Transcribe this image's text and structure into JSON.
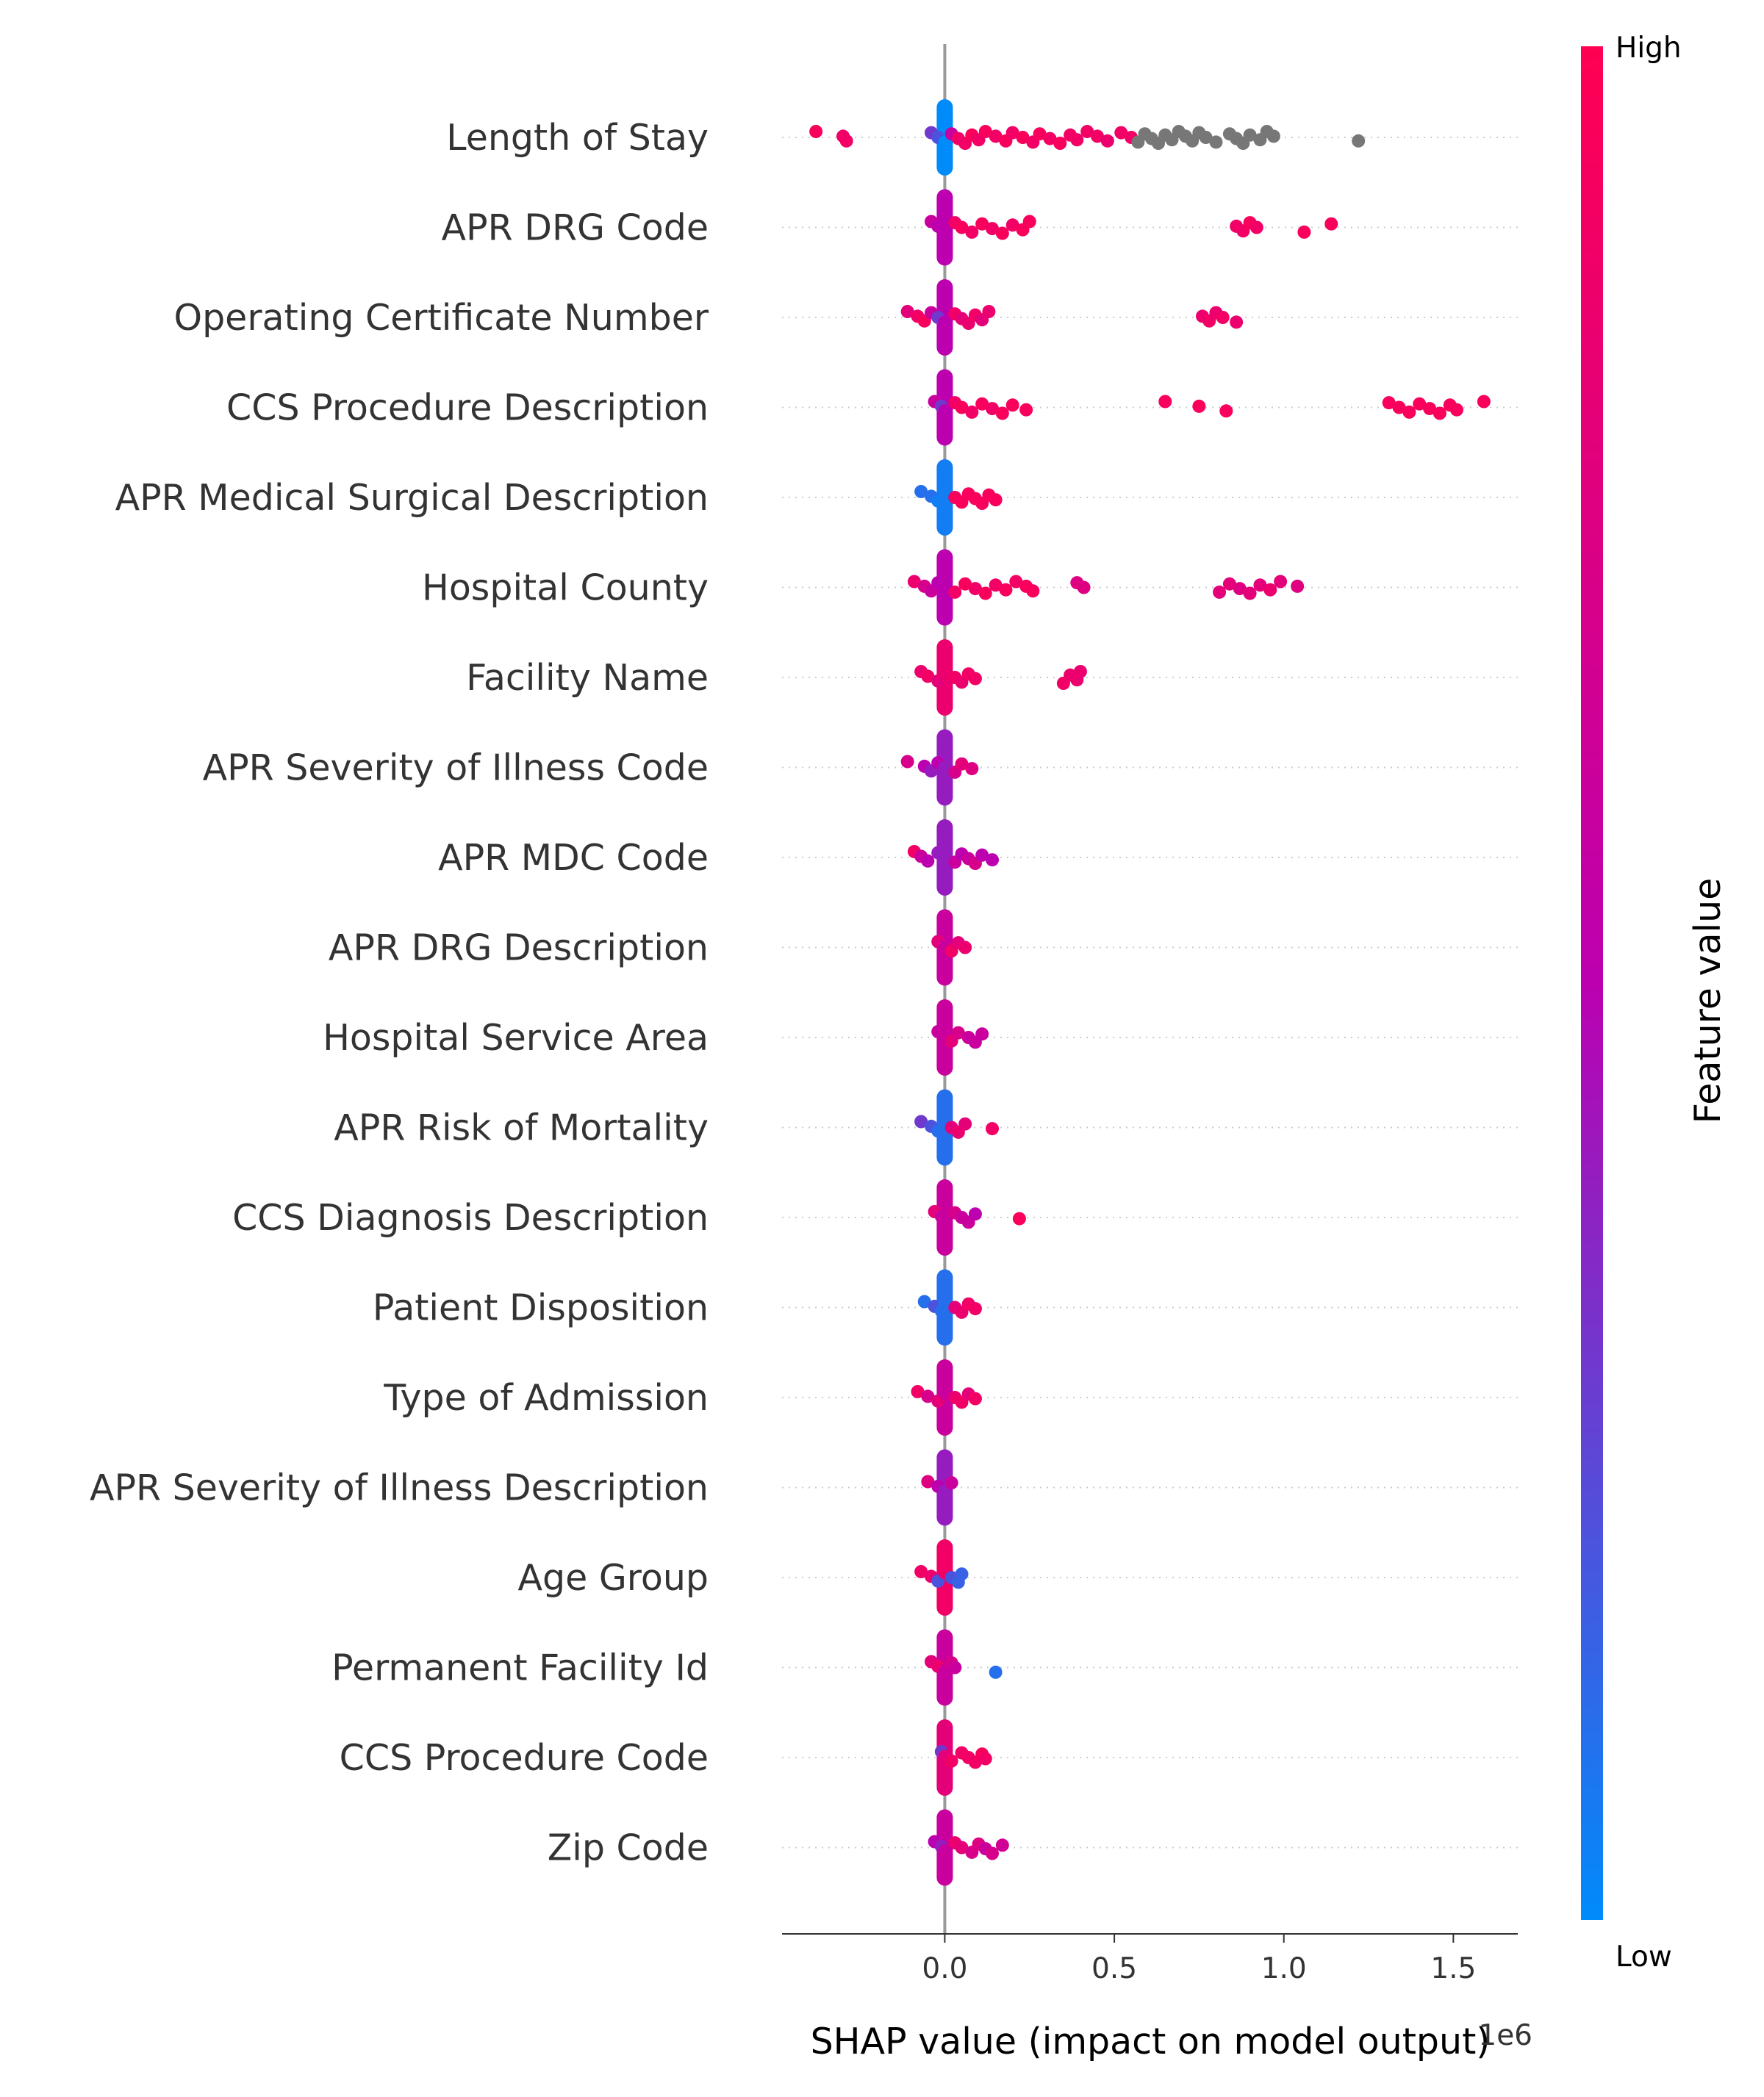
{
  "chart_data": {
    "type": "scatter",
    "subtype": "shap-beeswarm",
    "title": "",
    "xlabel": "SHAP value (impact on model output)",
    "ylabel": "",
    "x_offset_text": "1e6",
    "xlim": [
      -0.48,
      1.69
    ],
    "xticks": [
      0.0,
      0.5,
      1.0,
      1.5
    ],
    "xtick_labels": [
      "0.0",
      "0.5",
      "1.0",
      "1.5"
    ],
    "grid": "dotted row lines",
    "legend": "none",
    "colorbar": {
      "label": "Feature value",
      "high_label": "High",
      "low_label": "Low",
      "high_color": "#ff0052",
      "mid_color": "#bc00b0",
      "low_color": "#008bfb",
      "missing_color": "#777777"
    },
    "features": [
      {
        "name": "Length of Stay",
        "points": [
          [
            -0.38,
            0.95
          ],
          [
            -0.3,
            0.9
          ],
          [
            -0.29,
            0.9
          ],
          [
            -0.04,
            0.3
          ],
          [
            -0.02,
            0.2
          ],
          [
            0.0,
            0.0
          ],
          [
            0.02,
            0.6
          ],
          [
            0.04,
            0.9
          ],
          [
            0.06,
            0.9
          ],
          [
            0.08,
            0.95
          ],
          [
            0.1,
            0.9
          ],
          [
            0.12,
            0.95
          ],
          [
            0.15,
            0.9
          ],
          [
            0.18,
            0.95
          ],
          [
            0.2,
            0.9
          ],
          [
            0.23,
            0.95
          ],
          [
            0.26,
            0.9
          ],
          [
            0.28,
            0.95
          ],
          [
            0.31,
            0.9
          ],
          [
            0.34,
            0.95
          ],
          [
            0.37,
            0.9
          ],
          [
            0.39,
            0.9
          ],
          [
            0.42,
            0.9
          ],
          [
            0.45,
            0.9
          ],
          [
            0.48,
            0.85
          ],
          [
            0.52,
            0.9
          ],
          [
            0.55,
            0.9
          ],
          [
            0.57,
            -1
          ],
          [
            0.59,
            -1
          ],
          [
            0.61,
            -1
          ],
          [
            0.63,
            -1
          ],
          [
            0.65,
            -1
          ],
          [
            0.67,
            -1
          ],
          [
            0.69,
            -1
          ],
          [
            0.71,
            -1
          ],
          [
            0.73,
            -1
          ],
          [
            0.75,
            -1
          ],
          [
            0.77,
            -1
          ],
          [
            0.8,
            -1
          ],
          [
            0.84,
            -1
          ],
          [
            0.86,
            -1
          ],
          [
            0.88,
            -1
          ],
          [
            0.9,
            -1
          ],
          [
            0.93,
            -1
          ],
          [
            0.95,
            -1
          ],
          [
            0.97,
            -1
          ],
          [
            1.22,
            -1
          ]
        ]
      },
      {
        "name": "APR DRG Code",
        "points": [
          [
            -0.04,
            0.6
          ],
          [
            -0.02,
            0.5
          ],
          [
            0.0,
            0.5
          ],
          [
            0.03,
            0.9
          ],
          [
            0.05,
            0.95
          ],
          [
            0.08,
            0.9
          ],
          [
            0.11,
            0.95
          ],
          [
            0.14,
            0.9
          ],
          [
            0.17,
            0.95
          ],
          [
            0.2,
            0.9
          ],
          [
            0.23,
            0.95
          ],
          [
            0.25,
            0.95
          ],
          [
            0.86,
            0.9
          ],
          [
            0.88,
            0.9
          ],
          [
            0.9,
            0.95
          ],
          [
            0.92,
            0.9
          ],
          [
            1.06,
            0.95
          ],
          [
            1.14,
            0.95
          ]
        ]
      },
      {
        "name": "Operating Certificate Number",
        "points": [
          [
            -0.11,
            0.8
          ],
          [
            -0.08,
            0.9
          ],
          [
            -0.06,
            0.95
          ],
          [
            -0.04,
            0.6
          ],
          [
            -0.02,
            0.3
          ],
          [
            0.0,
            0.5
          ],
          [
            0.03,
            0.9
          ],
          [
            0.05,
            0.8
          ],
          [
            0.07,
            0.85
          ],
          [
            0.09,
            0.9
          ],
          [
            0.11,
            0.8
          ],
          [
            0.13,
            0.85
          ],
          [
            0.76,
            0.85
          ],
          [
            0.78,
            0.9
          ],
          [
            0.8,
            0.85
          ],
          [
            0.82,
            0.9
          ],
          [
            0.86,
            0.85
          ]
        ]
      },
      {
        "name": "CCS Procedure Description",
        "points": [
          [
            -0.03,
            0.6
          ],
          [
            -0.01,
            0.3
          ],
          [
            0.0,
            0.5
          ],
          [
            0.03,
            0.9
          ],
          [
            0.05,
            0.95
          ],
          [
            0.08,
            0.9
          ],
          [
            0.11,
            0.95
          ],
          [
            0.14,
            0.9
          ],
          [
            0.17,
            0.95
          ],
          [
            0.2,
            0.95
          ],
          [
            0.24,
            0.95
          ],
          [
            0.65,
            0.95
          ],
          [
            0.75,
            0.95
          ],
          [
            0.83,
            0.95
          ],
          [
            1.31,
            0.95
          ],
          [
            1.34,
            0.95
          ],
          [
            1.37,
            0.95
          ],
          [
            1.4,
            0.95
          ],
          [
            1.43,
            0.95
          ],
          [
            1.46,
            0.95
          ],
          [
            1.49,
            0.95
          ],
          [
            1.51,
            0.95
          ],
          [
            1.59,
            0.95
          ]
        ]
      },
      {
        "name": "APR Medical Surgical Description",
        "points": [
          [
            -0.07,
            0.1
          ],
          [
            -0.04,
            0.1
          ],
          [
            -0.02,
            0.05
          ],
          [
            0.0,
            0.05
          ],
          [
            0.03,
            0.95
          ],
          [
            0.05,
            0.95
          ],
          [
            0.07,
            0.95
          ],
          [
            0.09,
            0.95
          ],
          [
            0.11,
            0.95
          ],
          [
            0.13,
            0.95
          ],
          [
            0.15,
            0.95
          ]
        ]
      },
      {
        "name": "Hospital County",
        "points": [
          [
            -0.09,
            0.85
          ],
          [
            -0.06,
            0.7
          ],
          [
            -0.04,
            0.6
          ],
          [
            -0.02,
            0.5
          ],
          [
            0.0,
            0.5
          ],
          [
            0.03,
            0.9
          ],
          [
            0.06,
            0.95
          ],
          [
            0.09,
            0.9
          ],
          [
            0.12,
            0.95
          ],
          [
            0.15,
            0.9
          ],
          [
            0.18,
            0.95
          ],
          [
            0.21,
            0.9
          ],
          [
            0.24,
            0.95
          ],
          [
            0.26,
            0.95
          ],
          [
            0.39,
            0.75
          ],
          [
            0.41,
            0.75
          ],
          [
            0.81,
            0.8
          ],
          [
            0.84,
            0.8
          ],
          [
            0.87,
            0.75
          ],
          [
            0.9,
            0.8
          ],
          [
            0.93,
            0.8
          ],
          [
            0.96,
            0.85
          ],
          [
            0.99,
            0.8
          ],
          [
            1.04,
            0.75
          ]
        ]
      },
      {
        "name": "Facility Name",
        "points": [
          [
            -0.07,
            0.85
          ],
          [
            -0.05,
            0.9
          ],
          [
            -0.02,
            0.8
          ],
          [
            0.0,
            0.85
          ],
          [
            0.03,
            0.9
          ],
          [
            0.05,
            0.85
          ],
          [
            0.07,
            0.9
          ],
          [
            0.09,
            0.9
          ],
          [
            0.35,
            0.9
          ],
          [
            0.37,
            0.85
          ],
          [
            0.39,
            0.85
          ],
          [
            0.4,
            0.85
          ]
        ]
      },
      {
        "name": "APR Severity of Illness Code",
        "points": [
          [
            -0.11,
            0.7
          ],
          [
            -0.06,
            0.5
          ],
          [
            -0.04,
            0.4
          ],
          [
            -0.02,
            0.5
          ],
          [
            0.0,
            0.4
          ],
          [
            0.03,
            0.7
          ],
          [
            0.05,
            0.8
          ],
          [
            0.08,
            0.75
          ]
        ]
      },
      {
        "name": "APR MDC Code",
        "points": [
          [
            -0.09,
            0.9
          ],
          [
            -0.07,
            0.6
          ],
          [
            -0.05,
            0.5
          ],
          [
            -0.02,
            0.4
          ],
          [
            0.0,
            0.4
          ],
          [
            0.03,
            0.6
          ],
          [
            0.05,
            0.5
          ],
          [
            0.07,
            0.6
          ],
          [
            0.09,
            0.7
          ],
          [
            0.11,
            0.5
          ],
          [
            0.14,
            0.5
          ]
        ]
      },
      {
        "name": "APR DRG Description",
        "points": [
          [
            -0.02,
            0.8
          ],
          [
            0.0,
            0.6
          ],
          [
            0.02,
            0.9
          ],
          [
            0.04,
            0.8
          ],
          [
            0.06,
            0.85
          ]
        ]
      },
      {
        "name": "Hospital Service Area",
        "points": [
          [
            -0.02,
            0.6
          ],
          [
            0.0,
            0.6
          ],
          [
            0.02,
            0.8
          ],
          [
            0.04,
            0.7
          ],
          [
            0.07,
            0.6
          ],
          [
            0.09,
            0.6
          ],
          [
            0.11,
            0.6
          ]
        ]
      },
      {
        "name": "APR Risk of Mortality",
        "points": [
          [
            -0.07,
            0.3
          ],
          [
            -0.04,
            0.2
          ],
          [
            -0.02,
            0.1
          ],
          [
            0.0,
            0.1
          ],
          [
            0.02,
            0.8
          ],
          [
            0.04,
            0.85
          ],
          [
            0.06,
            0.8
          ],
          [
            0.14,
            0.9
          ]
        ]
      },
      {
        "name": "CCS Diagnosis Description",
        "points": [
          [
            -0.03,
            0.8
          ],
          [
            -0.01,
            0.6
          ],
          [
            0.0,
            0.6
          ],
          [
            0.03,
            0.7
          ],
          [
            0.05,
            0.6
          ],
          [
            0.07,
            0.6
          ],
          [
            0.09,
            0.5
          ],
          [
            0.22,
            0.95
          ]
        ]
      },
      {
        "name": "Patient Disposition",
        "points": [
          [
            -0.06,
            0.1
          ],
          [
            -0.03,
            0.2
          ],
          [
            -0.01,
            0.1
          ],
          [
            0.0,
            0.1
          ],
          [
            0.03,
            0.8
          ],
          [
            0.05,
            0.85
          ],
          [
            0.07,
            0.9
          ],
          [
            0.09,
            0.9
          ]
        ]
      },
      {
        "name": "Type of Admission",
        "points": [
          [
            -0.08,
            0.9
          ],
          [
            -0.05,
            0.7
          ],
          [
            -0.02,
            0.8
          ],
          [
            0.0,
            0.6
          ],
          [
            0.03,
            0.85
          ],
          [
            0.05,
            0.9
          ],
          [
            0.07,
            0.8
          ],
          [
            0.09,
            0.9
          ]
        ]
      },
      {
        "name": "APR Severity of Illness Description",
        "points": [
          [
            -0.05,
            0.75
          ],
          [
            -0.02,
            0.5
          ],
          [
            0.0,
            0.4
          ],
          [
            0.02,
            0.6
          ]
        ]
      },
      {
        "name": "Age Group",
        "points": [
          [
            -0.07,
            0.9
          ],
          [
            -0.04,
            0.85
          ],
          [
            -0.02,
            0.2
          ],
          [
            0.0,
            0.9
          ],
          [
            0.02,
            0.2
          ],
          [
            0.04,
            0.15
          ],
          [
            0.05,
            0.15
          ]
        ]
      },
      {
        "name": "Permanent Facility Id",
        "points": [
          [
            -0.04,
            0.8
          ],
          [
            -0.02,
            0.85
          ],
          [
            0.0,
            0.6
          ],
          [
            0.02,
            0.7
          ],
          [
            0.03,
            0.6
          ],
          [
            0.15,
            0.1
          ]
        ]
      },
      {
        "name": "CCS Procedure Code",
        "points": [
          [
            -0.01,
            0.3
          ],
          [
            0.0,
            0.8
          ],
          [
            0.02,
            0.9
          ],
          [
            0.05,
            0.9
          ],
          [
            0.07,
            0.9
          ],
          [
            0.09,
            0.9
          ],
          [
            0.11,
            0.95
          ],
          [
            0.12,
            0.9
          ]
        ]
      },
      {
        "name": "Zip Code",
        "points": [
          [
            -0.03,
            0.5
          ],
          [
            -0.01,
            0.4
          ],
          [
            0.0,
            0.6
          ],
          [
            0.03,
            0.85
          ],
          [
            0.05,
            0.8
          ],
          [
            0.08,
            0.7
          ],
          [
            0.1,
            0.75
          ],
          [
            0.12,
            0.6
          ],
          [
            0.14,
            0.7
          ],
          [
            0.17,
            0.65
          ]
        ]
      }
    ]
  }
}
